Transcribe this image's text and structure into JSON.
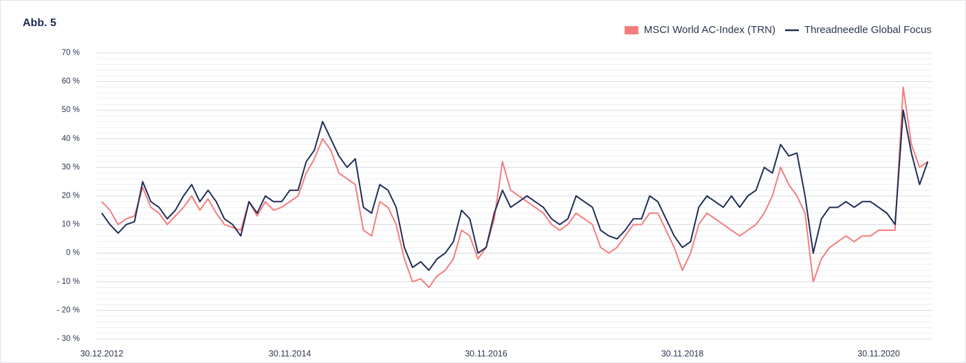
{
  "chart_data": {
    "type": "line",
    "title": "Abb. 5",
    "categories": [
      "30.12.2012",
      null,
      null,
      null,
      null,
      null,
      null,
      null,
      null,
      null,
      null,
      null,
      null,
      null,
      null,
      null,
      null,
      null,
      null,
      null,
      null,
      null,
      null,
      "30.11.2014",
      null,
      null,
      null,
      null,
      null,
      null,
      null,
      null,
      null,
      null,
      null,
      null,
      null,
      null,
      null,
      null,
      null,
      null,
      null,
      null,
      null,
      null,
      null,
      "30.11.2016",
      null,
      null,
      null,
      null,
      null,
      null,
      null,
      null,
      null,
      null,
      null,
      null,
      null,
      null,
      null,
      null,
      null,
      null,
      null,
      null,
      null,
      null,
      null,
      "30.11.2018",
      null,
      null,
      null,
      null,
      null,
      null,
      null,
      null,
      null,
      null,
      null,
      null,
      null,
      null,
      null,
      null,
      null,
      null,
      null,
      null,
      null,
      null,
      null,
      "30.11.2020",
      null,
      null,
      null,
      null,
      null,
      null
    ],
    "series": [
      {
        "name": "MSCI World AC-Index (TRN)",
        "color": "#f47c7a",
        "values": [
          18,
          15,
          10,
          12,
          13,
          23,
          16,
          14,
          10,
          13,
          16,
          20,
          15,
          19,
          14,
          10,
          9,
          8,
          18,
          13,
          18,
          15,
          16,
          18,
          20,
          28,
          33,
          40,
          36,
          28,
          26,
          24,
          8,
          6,
          18,
          16,
          10,
          -2,
          -10,
          -9,
          -12,
          -8,
          -6,
          -2,
          8,
          6,
          -2,
          2,
          12,
          32,
          22,
          20,
          18,
          16,
          14,
          10,
          8,
          10,
          14,
          12,
          10,
          2,
          0,
          2,
          6,
          10,
          10,
          14,
          14,
          8,
          2,
          -6,
          0,
          10,
          14,
          12,
          10,
          8,
          6,
          8,
          10,
          14,
          20,
          30,
          24,
          20,
          14,
          -10,
          -2,
          2,
          4,
          6,
          4,
          6,
          6,
          8,
          8,
          8,
          58,
          38,
          30,
          32
        ]
      },
      {
        "name": "Threadneedle Global Focus",
        "color": "#1e2b57",
        "values": [
          14,
          10,
          7,
          10,
          11,
          25,
          18,
          16,
          12,
          15,
          20,
          24,
          18,
          22,
          18,
          12,
          10,
          6,
          18,
          14,
          20,
          18,
          18,
          22,
          22,
          32,
          36,
          46,
          40,
          34,
          30,
          33,
          16,
          14,
          24,
          22,
          16,
          2,
          -5,
          -3,
          -6,
          -2,
          0,
          4,
          15,
          12,
          0,
          2,
          14,
          22,
          16,
          18,
          20,
          18,
          16,
          12,
          10,
          12,
          20,
          18,
          16,
          8,
          6,
          5,
          8,
          12,
          12,
          20,
          18,
          12,
          6,
          2,
          4,
          16,
          20,
          18,
          16,
          20,
          16,
          20,
          22,
          30,
          28,
          38,
          34,
          35,
          20,
          0,
          12,
          16,
          16,
          18,
          16,
          18,
          18,
          16,
          14,
          10,
          50,
          35,
          24,
          32
        ]
      }
    ],
    "ylim": [
      -30,
      70
    ],
    "yticks": [
      {
        "value": -30,
        "label": "- 30 %"
      },
      {
        "value": -20,
        "label": "- 20 %"
      },
      {
        "value": -10,
        "label": "- 10 %"
      },
      {
        "value": 0,
        "label": "0 %"
      },
      {
        "value": 10,
        "label": "10 %"
      },
      {
        "value": 20,
        "label": "20 %"
      },
      {
        "value": 30,
        "label": "30 %"
      },
      {
        "value": 40,
        "label": "40 %"
      },
      {
        "value": 50,
        "label": "50 %"
      },
      {
        "value": 60,
        "label": "60 %"
      },
      {
        "value": 70,
        "label": "70 %"
      }
    ],
    "grid": true,
    "legend": "top-right"
  }
}
